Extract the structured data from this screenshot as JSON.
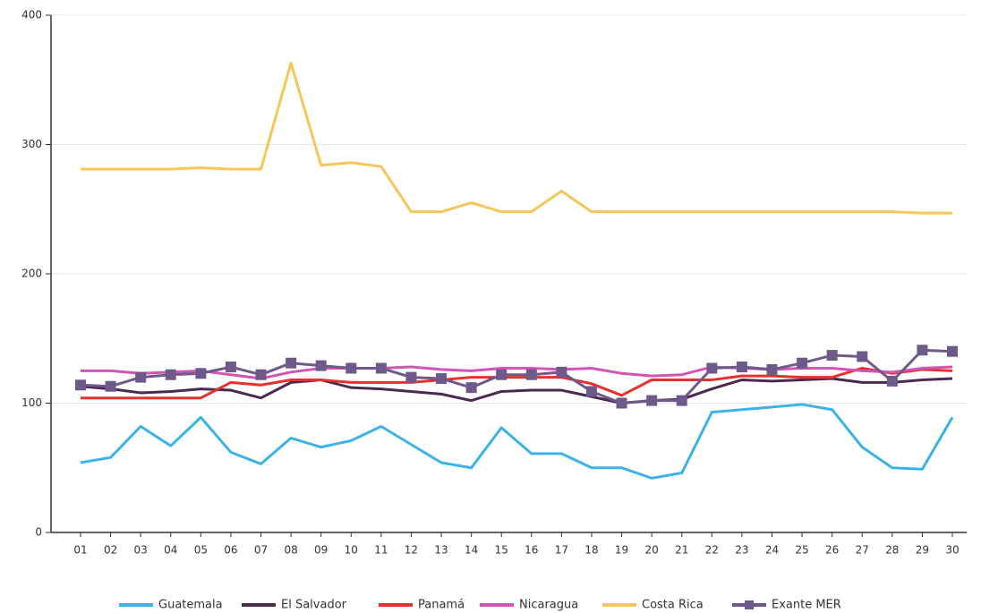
{
  "chart_data": {
    "type": "line",
    "categories": [
      "01",
      "02",
      "03",
      "04",
      "05",
      "06",
      "07",
      "08",
      "09",
      "10",
      "11",
      "12",
      "13",
      "14",
      "15",
      "16",
      "17",
      "18",
      "19",
      "20",
      "21",
      "22",
      "23",
      "24",
      "25",
      "26",
      "27",
      "28",
      "29",
      "30"
    ],
    "ylim": [
      0,
      400
    ],
    "yticks": [
      0,
      100,
      200,
      300,
      400
    ],
    "grid": true,
    "legend": "bottom",
    "series": [
      {
        "name": "Guatemala",
        "color": "#3bb3e6",
        "values": [
          54,
          58,
          82,
          67,
          89,
          62,
          53,
          73,
          66,
          71,
          82,
          68,
          54,
          50,
          81,
          61,
          61,
          50,
          50,
          42,
          46,
          93,
          95,
          97,
          99,
          95,
          66,
          50,
          49,
          89
        ]
      },
      {
        "name": "El Salvador",
        "color": "#4a2a4e",
        "values": [
          113,
          111,
          108,
          109,
          111,
          110,
          104,
          116,
          118,
          112,
          111,
          109,
          107,
          102,
          109,
          110,
          110,
          105,
          100,
          102,
          103,
          111,
          118,
          117,
          118,
          119,
          116,
          116,
          118,
          119
        ]
      },
      {
        "name": "Panamá",
        "color": "#e8302e",
        "values": [
          104,
          104,
          104,
          104,
          104,
          116,
          114,
          118,
          118,
          116,
          116,
          116,
          118,
          120,
          120,
          120,
          120,
          115,
          106,
          118,
          118,
          118,
          121,
          121,
          120,
          120,
          127,
          123,
          126,
          125
        ]
      },
      {
        "name": "Nicaragua",
        "color": "#d454b4",
        "values": [
          125,
          125,
          123,
          124,
          125,
          122,
          119,
          124,
          127,
          127,
          127,
          128,
          126,
          125,
          127,
          127,
          126,
          127,
          123,
          121,
          122,
          128,
          127,
          126,
          127,
          127,
          125,
          124,
          127,
          128
        ]
      },
      {
        "name": "Costa Rica",
        "color": "#f7c65a",
        "values": [
          281,
          281,
          281,
          281,
          282,
          281,
          281,
          363,
          284,
          286,
          283,
          248,
          248,
          255,
          248,
          248,
          264,
          248,
          248,
          248,
          248,
          248,
          248,
          248,
          248,
          248,
          248,
          248,
          247,
          247
        ]
      },
      {
        "name": "Exante MER",
        "color": "#6e5a8a",
        "marker": "square",
        "values": [
          114,
          113,
          120,
          122,
          123,
          128,
          122,
          131,
          129,
          127,
          127,
          120,
          119,
          112,
          122,
          122,
          124,
          109,
          100,
          102,
          102,
          127,
          128,
          126,
          131,
          137,
          136,
          117,
          141,
          140
        ]
      }
    ]
  }
}
